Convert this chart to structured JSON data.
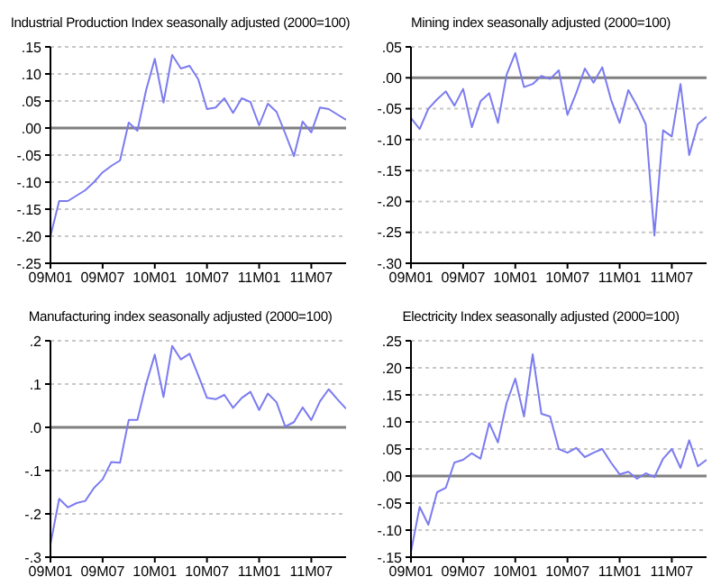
{
  "chart_data": [
    {
      "type": "line",
      "title": "Industrial Production Index seasonally adjusted (2000=100)",
      "categories": [
        "09M01",
        null,
        null,
        null,
        null,
        null,
        "09M07",
        null,
        null,
        null,
        null,
        null,
        "10M01",
        null,
        null,
        null,
        null,
        null,
        "10M07",
        null,
        null,
        null,
        null,
        null,
        "11M01",
        null,
        null,
        null,
        null,
        null,
        "11M07",
        null,
        null,
        null,
        null
      ],
      "series": [
        {
          "color": "#7b7bf0",
          "values": [
            -0.2,
            -0.135,
            -0.135,
            -0.125,
            -0.115,
            -0.1,
            -0.082,
            -0.07,
            -0.06,
            0.01,
            -0.005,
            0.07,
            0.128,
            0.047,
            0.135,
            0.11,
            0.115,
            0.09,
            0.035,
            0.038,
            0.055,
            0.028,
            0.055,
            0.048,
            0.005,
            0.045,
            0.03,
            -0.01,
            -0.052,
            0.012,
            -0.008,
            0.038,
            0.035,
            0.025,
            0.015
          ]
        }
      ],
      "ylim": [
        -0.25,
        0.15
      ],
      "yticks": [
        {
          "value": -0.25,
          "label": "-.25"
        },
        {
          "value": -0.2,
          "label": "-.20"
        },
        {
          "value": -0.15,
          "label": "-.15"
        },
        {
          "value": -0.1,
          "label": "-.10"
        },
        {
          "value": -0.05,
          "label": "-.05"
        },
        {
          "value": 0,
          "label": ".00"
        },
        {
          "value": 0.05,
          "label": ".05"
        },
        {
          "value": 0.1,
          "label": ".10"
        },
        {
          "value": 0.15,
          "label": ".15"
        }
      ],
      "grid": "y",
      "ref_lines": [
        {
          "axis": "y",
          "value": 0,
          "color": "#808080"
        }
      ]
    },
    {
      "type": "line",
      "title": "Mining index seasonally adjusted (2000=100)",
      "categories": [
        "09M01",
        null,
        null,
        null,
        null,
        null,
        "09M07",
        null,
        null,
        null,
        null,
        null,
        "10M01",
        null,
        null,
        null,
        null,
        null,
        "10M07",
        null,
        null,
        null,
        null,
        null,
        "11M01",
        null,
        null,
        null,
        null,
        null,
        "11M07",
        null,
        null,
        null,
        null
      ],
      "series": [
        {
          "color": "#7b7bf0",
          "values": [
            -0.065,
            -0.083,
            -0.05,
            -0.035,
            -0.022,
            -0.045,
            -0.018,
            -0.08,
            -0.038,
            -0.025,
            -0.073,
            0.005,
            0.04,
            -0.015,
            -0.01,
            0.003,
            -0.002,
            0.012,
            -0.06,
            -0.025,
            0.015,
            -0.008,
            0.017,
            -0.035,
            -0.073,
            -0.02,
            -0.045,
            -0.075,
            -0.255,
            -0.085,
            -0.095,
            -0.01,
            -0.125,
            -0.075,
            -0.063
          ]
        }
      ],
      "ylim": [
        -0.3,
        0.05
      ],
      "yticks": [
        {
          "value": -0.3,
          "label": "-.30"
        },
        {
          "value": -0.25,
          "label": "-.25"
        },
        {
          "value": -0.2,
          "label": "-.20"
        },
        {
          "value": -0.15,
          "label": "-.15"
        },
        {
          "value": -0.1,
          "label": "-.10"
        },
        {
          "value": -0.05,
          "label": "-.05"
        },
        {
          "value": 0,
          "label": ".00"
        },
        {
          "value": 0.05,
          "label": ".05"
        }
      ],
      "grid": "y",
      "ref_lines": [
        {
          "axis": "y",
          "value": 0,
          "color": "#808080"
        }
      ]
    },
    {
      "type": "line",
      "title": "Manufacturing index seasonally adjusted (2000=100)",
      "categories": [
        "09M01",
        null,
        null,
        null,
        null,
        null,
        "09M07",
        null,
        null,
        null,
        null,
        null,
        "10M01",
        null,
        null,
        null,
        null,
        null,
        "10M07",
        null,
        null,
        null,
        null,
        null,
        "11M01",
        null,
        null,
        null,
        null,
        null,
        "11M07",
        null,
        null,
        null,
        null
      ],
      "series": [
        {
          "color": "#7b7bf0",
          "values": [
            -0.27,
            -0.165,
            -0.185,
            -0.175,
            -0.17,
            -0.14,
            -0.12,
            -0.08,
            -0.082,
            0.017,
            0.017,
            0.1,
            0.168,
            0.07,
            0.188,
            0.157,
            0.17,
            0.12,
            0.068,
            0.065,
            0.075,
            0.045,
            0.068,
            0.082,
            0.04,
            0.078,
            0.058,
            0.002,
            0.012,
            0.046,
            0.017,
            0.06,
            0.088,
            0.065,
            0.043
          ]
        }
      ],
      "ylim": [
        -0.3,
        0.2
      ],
      "yticks": [
        {
          "value": -0.3,
          "label": "-.3"
        },
        {
          "value": -0.2,
          "label": "-.2"
        },
        {
          "value": -0.1,
          "label": "-.1"
        },
        {
          "value": 0,
          "label": ".0"
        },
        {
          "value": 0.1,
          "label": ".1"
        },
        {
          "value": 0.2,
          "label": ".2"
        }
      ],
      "grid": "y",
      "ref_lines": [
        {
          "axis": "y",
          "value": 0,
          "color": "#808080"
        }
      ]
    },
    {
      "type": "line",
      "title": "Electricity Index seasonally adjusted (2000=100)",
      "categories": [
        "09M01",
        null,
        null,
        null,
        null,
        null,
        "09M07",
        null,
        null,
        null,
        null,
        null,
        "10M01",
        null,
        null,
        null,
        null,
        null,
        "10M07",
        null,
        null,
        null,
        null,
        null,
        "11M01",
        null,
        null,
        null,
        null,
        null,
        "11M07",
        null,
        null,
        null,
        null
      ],
      "series": [
        {
          "color": "#7b7bf0",
          "values": [
            -0.14,
            -0.057,
            -0.09,
            -0.03,
            -0.022,
            0.025,
            0.03,
            0.042,
            0.032,
            0.098,
            0.062,
            0.135,
            0.18,
            0.11,
            0.225,
            0.115,
            0.11,
            0.05,
            0.043,
            0.052,
            0.035,
            0.043,
            0.05,
            0.025,
            0.003,
            0.008,
            -0.005,
            0.005,
            -0.002,
            0.032,
            0.05,
            0.015,
            0.066,
            0.018,
            0.03
          ]
        }
      ],
      "ylim": [
        -0.15,
        0.25
      ],
      "yticks": [
        {
          "value": -0.15,
          "label": "-.15"
        },
        {
          "value": -0.1,
          "label": "-.10"
        },
        {
          "value": -0.05,
          "label": "-.05"
        },
        {
          "value": 0,
          "label": ".00"
        },
        {
          "value": 0.05,
          "label": ".05"
        },
        {
          "value": 0.1,
          "label": ".10"
        },
        {
          "value": 0.15,
          "label": ".15"
        },
        {
          "value": 0.2,
          "label": ".20"
        },
        {
          "value": 0.25,
          "label": ".25"
        }
      ],
      "grid": "y",
      "ref_lines": [
        {
          "axis": "y",
          "value": 0,
          "color": "#808080"
        }
      ]
    }
  ]
}
